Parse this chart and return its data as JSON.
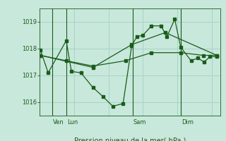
{
  "bg_color": "#c8e8dc",
  "grid_color": "#a8d4c4",
  "line_color": "#1a5c1a",
  "xlabel": "Pression niveau de la mer( hPa )",
  "ylim": [
    1015.5,
    1019.5
  ],
  "yticks": [
    1016,
    1017,
    1018,
    1019
  ],
  "xlim": [
    0.0,
    10.5
  ],
  "vlines_x": [
    0.72,
    1.55,
    5.4,
    8.2
  ],
  "vline_labels": [
    "Ven",
    "Lun",
    "Sam",
    "Dim"
  ],
  "s1_x": [
    0.05,
    0.5,
    1.55,
    1.85,
    2.4,
    3.1,
    3.7,
    4.25,
    4.85,
    5.35,
    5.65,
    6.0,
    6.5,
    7.05,
    7.4,
    7.85,
    8.2,
    8.8,
    9.2,
    9.55,
    9.9,
    10.3
  ],
  "s1_y": [
    1017.95,
    1017.1,
    1018.3,
    1017.15,
    1017.1,
    1016.55,
    1016.2,
    1015.85,
    1015.95,
    1018.1,
    1018.45,
    1018.5,
    1018.85,
    1018.85,
    1018.45,
    1019.1,
    1018.05,
    1017.55,
    1017.65,
    1017.5,
    1017.7,
    1017.7
  ],
  "s2_x": [
    0.05,
    1.55,
    3.1,
    5.0,
    6.5,
    8.2,
    9.5,
    10.3
  ],
  "s2_y": [
    1017.75,
    1017.55,
    1017.35,
    1017.55,
    1017.85,
    1017.85,
    1017.75,
    1017.75
  ],
  "s3_x": [
    0.05,
    3.1,
    5.35,
    7.3,
    10.3
  ],
  "s3_y": [
    1017.75,
    1017.3,
    1018.15,
    1018.6,
    1017.75
  ]
}
